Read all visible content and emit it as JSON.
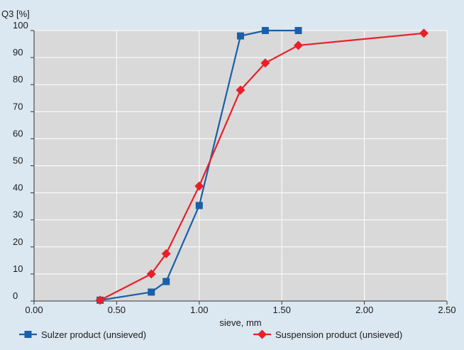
{
  "chart_data": {
    "type": "line",
    "y_title": "Q3 [%]",
    "xlabel": "sieve, mm",
    "xlim": [
      0,
      2.5
    ],
    "ylim": [
      0,
      100
    ],
    "x_ticks": [
      "0.00",
      "0.50",
      "1.00",
      "1.50",
      "2.00",
      "2.50"
    ],
    "y_ticks": [
      "0",
      "10",
      "20",
      "30",
      "40",
      "50",
      "60",
      "70",
      "80",
      "90",
      "100"
    ],
    "grid": true,
    "legend_position": "bottom",
    "series": [
      {
        "name": "Sulzer product (unsieved)",
        "color": "#1a5fa8",
        "marker": "square",
        "x": [
          0.4,
          0.71,
          0.8,
          1.0,
          1.25,
          1.4,
          1.6
        ],
        "y": [
          0.3,
          3.3,
          7.2,
          35.3,
          98.0,
          100.0,
          100.0
        ]
      },
      {
        "name": "Suspension product (unsieved)",
        "color": "#e8202a",
        "marker": "diamond",
        "x": [
          0.4,
          0.71,
          0.8,
          1.0,
          1.25,
          1.4,
          1.6,
          2.36
        ],
        "y": [
          0.3,
          10.0,
          17.5,
          42.5,
          78.0,
          88.0,
          94.5,
          99.0
        ]
      }
    ]
  },
  "colors": {
    "page_background": "#dbe7f1",
    "plot_background": "#d9d9d9",
    "grid": "#ffffff"
  }
}
